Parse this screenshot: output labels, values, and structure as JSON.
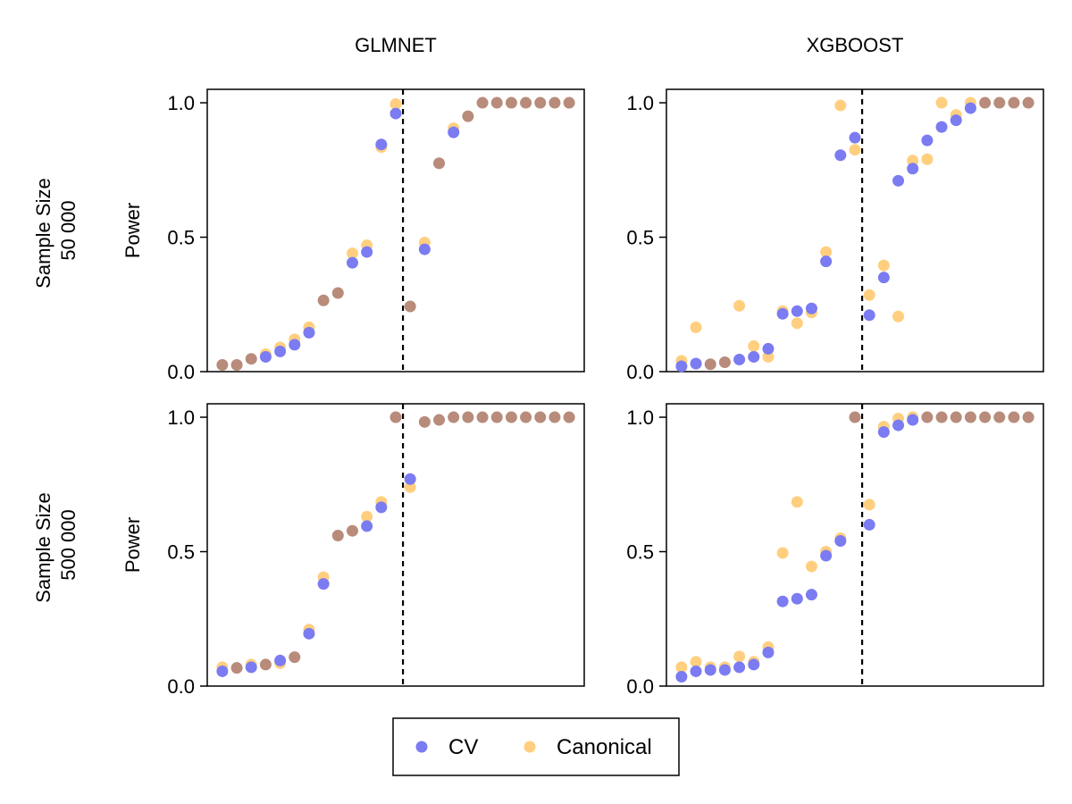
{
  "columns": [
    "GLMNET",
    "XGBOOST"
  ],
  "rows": [
    "Sample Size\n50 000",
    "Sample Size\n500 000"
  ],
  "legend": {
    "items": [
      {
        "label": "CV",
        "color": "#7b7bf2"
      },
      {
        "label": "Canonical",
        "color": "#ffcf7f"
      }
    ],
    "overlap_color": "#b88b7b"
  },
  "chart_data": [
    {
      "type": "scatter",
      "column": "GLMNET",
      "row": "Sample Size\n50 000",
      "ylabel": "Power",
      "ylim": [
        0,
        1.05
      ],
      "yticks": [
        "0.0",
        "0.5",
        "1.0"
      ],
      "x": [
        1,
        2,
        3,
        4,
        5,
        6,
        7,
        8,
        9,
        10,
        11,
        12,
        13,
        14,
        15,
        16,
        17,
        18,
        19,
        20,
        21,
        22,
        23,
        24,
        25
      ],
      "vline_at": 13.5,
      "series": [
        {
          "name": "CV",
          "values": [
            0.025,
            0.025,
            0.045,
            0.055,
            0.075,
            0.1,
            0.145,
            0.265,
            0.29,
            0.405,
            0.445,
            0.845,
            0.96,
            0.24,
            0.455,
            0.775,
            0.89,
            0.95,
            1.0,
            1.0,
            1.0,
            1.0,
            1.0,
            1.0,
            1.0
          ]
        },
        {
          "name": "Canonical",
          "values": [
            0.025,
            0.025,
            0.05,
            0.065,
            0.09,
            0.12,
            0.165,
            0.265,
            0.295,
            0.44,
            0.47,
            0.835,
            0.995,
            0.245,
            0.48,
            0.775,
            0.905,
            0.95,
            1.0,
            1.0,
            1.0,
            1.0,
            1.0,
            1.0,
            1.0
          ]
        }
      ]
    },
    {
      "type": "scatter",
      "column": "XGBOOST",
      "row": "Sample Size\n50 000",
      "ylabel": "",
      "ylim": [
        0,
        1.05
      ],
      "yticks": [
        "0.0",
        "0.5",
        "1.0"
      ],
      "x": [
        1,
        2,
        3,
        4,
        5,
        6,
        7,
        8,
        9,
        10,
        11,
        12,
        13,
        14,
        15,
        16,
        17,
        18,
        19,
        20,
        21,
        22,
        23,
        24,
        25
      ],
      "vline_at": 13.5,
      "series": [
        {
          "name": "CV",
          "values": [
            0.02,
            0.03,
            0.03,
            0.035,
            0.045,
            0.055,
            0.085,
            0.215,
            0.225,
            0.235,
            0.41,
            0.805,
            0.87,
            0.21,
            0.35,
            0.71,
            0.755,
            0.86,
            0.91,
            0.935,
            0.98,
            1.0,
            1.0,
            1.0,
            1.0
          ]
        },
        {
          "name": "Canonical",
          "values": [
            0.04,
            0.165,
            0.025,
            0.035,
            0.245,
            0.095,
            0.055,
            0.225,
            0.18,
            0.22,
            0.445,
            0.99,
            0.825,
            0.285,
            0.395,
            0.205,
            0.785,
            0.79,
            1.0,
            0.955,
            1.0,
            1.0,
            1.0,
            1.0,
            1.0
          ]
        }
      ]
    },
    {
      "type": "scatter",
      "column": "GLMNET",
      "row": "Sample Size\n500 000",
      "ylabel": "Power",
      "ylim": [
        0,
        1.05
      ],
      "yticks": [
        "0.0",
        "0.5",
        "1.0"
      ],
      "x": [
        1,
        2,
        3,
        4,
        5,
        6,
        7,
        8,
        9,
        10,
        11,
        12,
        13,
        14,
        15,
        16,
        17,
        18,
        19,
        20,
        21,
        22,
        23,
        24,
        25
      ],
      "vline_at": 13.5,
      "series": [
        {
          "name": "CV",
          "values": [
            0.055,
            0.065,
            0.07,
            0.08,
            0.095,
            0.105,
            0.195,
            0.38,
            0.56,
            0.58,
            0.595,
            0.665,
            1.0,
            0.77,
            0.98,
            0.99,
            1.0,
            1.0,
            1.0,
            1.0,
            1.0,
            1.0,
            1.0,
            1.0,
            1.0
          ]
        },
        {
          "name": "Canonical",
          "values": [
            0.07,
            0.07,
            0.08,
            0.08,
            0.085,
            0.11,
            0.21,
            0.405,
            0.56,
            0.575,
            0.63,
            0.685,
            1.0,
            0.74,
            0.985,
            0.99,
            1.0,
            1.0,
            1.0,
            1.0,
            1.0,
            1.0,
            1.0,
            1.0,
            1.0
          ]
        }
      ]
    },
    {
      "type": "scatter",
      "column": "XGBOOST",
      "row": "Sample Size\n500 000",
      "ylabel": "",
      "ylim": [
        0,
        1.05
      ],
      "yticks": [
        "0.0",
        "0.5",
        "1.0"
      ],
      "x": [
        1,
        2,
        3,
        4,
        5,
        6,
        7,
        8,
        9,
        10,
        11,
        12,
        13,
        14,
        15,
        16,
        17,
        18,
        19,
        20,
        21,
        22,
        23,
        24,
        25
      ],
      "vline_at": 13.5,
      "series": [
        {
          "name": "CV",
          "values": [
            0.035,
            0.055,
            0.06,
            0.06,
            0.07,
            0.08,
            0.125,
            0.315,
            0.325,
            0.34,
            0.485,
            0.54,
            1.0,
            0.6,
            0.945,
            0.97,
            0.99,
            1.0,
            1.0,
            1.0,
            1.0,
            1.0,
            1.0,
            1.0,
            1.0
          ]
        },
        {
          "name": "Canonical",
          "values": [
            0.07,
            0.09,
            0.07,
            0.07,
            0.11,
            0.09,
            0.145,
            0.495,
            0.685,
            0.445,
            0.5,
            0.55,
            1.0,
            0.675,
            0.965,
            0.995,
            1.0,
            1.0,
            1.0,
            1.0,
            1.0,
            1.0,
            1.0,
            1.0,
            1.0
          ]
        }
      ]
    }
  ]
}
